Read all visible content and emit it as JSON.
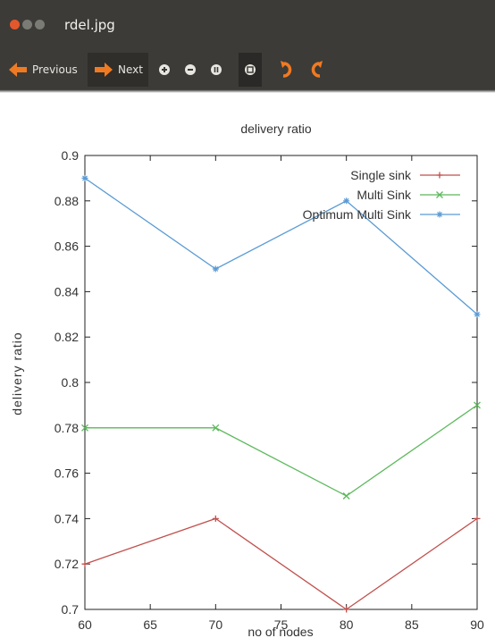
{
  "window": {
    "title": "rdel.jpg"
  },
  "toolbar": {
    "previous_label": "Previous",
    "next_label": "Next"
  },
  "icons": {
    "close": "close-icon",
    "minimize": "minimize-icon",
    "maximize": "maximize-icon",
    "previous": "arrow-left-icon",
    "next": "arrow-right-icon",
    "zoom_in": "zoom-in-icon",
    "zoom_out": "zoom-out-icon",
    "zoom_normal": "zoom-normal-icon",
    "zoom_fit": "zoom-fit-icon",
    "rotate_left": "rotate-left-icon",
    "rotate_right": "rotate-right-icon"
  },
  "colors": {
    "chrome": "#3c3b37",
    "accent": "#f07a22",
    "close": "#e2582c"
  },
  "chart_data": {
    "type": "line",
    "title": "delivery ratio",
    "xlabel": "no of nodes",
    "ylabel": "delivery ratio",
    "x": [
      60,
      70,
      80,
      90
    ],
    "xlim": [
      60,
      90
    ],
    "ylim": [
      0.7,
      0.9
    ],
    "xticks": [
      "60",
      "65",
      "70",
      "75",
      "80",
      "85",
      "90"
    ],
    "yticks": [
      "0.7",
      "0.72",
      "0.74",
      "0.76",
      "0.78",
      "0.8",
      "0.82",
      "0.84",
      "0.86",
      "0.88",
      "0.9"
    ],
    "legend_position": "top-right",
    "grid": false,
    "series": [
      {
        "name": "Single sink",
        "values": [
          0.72,
          0.74,
          0.7,
          0.74
        ],
        "color": "#c0504d"
      },
      {
        "name": "Multi Sink",
        "values": [
          0.78,
          0.78,
          0.75,
          0.79
        ],
        "color": "#5cb85c"
      },
      {
        "name": "Optimum Multi Sink",
        "values": [
          0.89,
          0.85,
          0.88,
          0.83
        ],
        "color": "#5b9bd5"
      }
    ]
  }
}
